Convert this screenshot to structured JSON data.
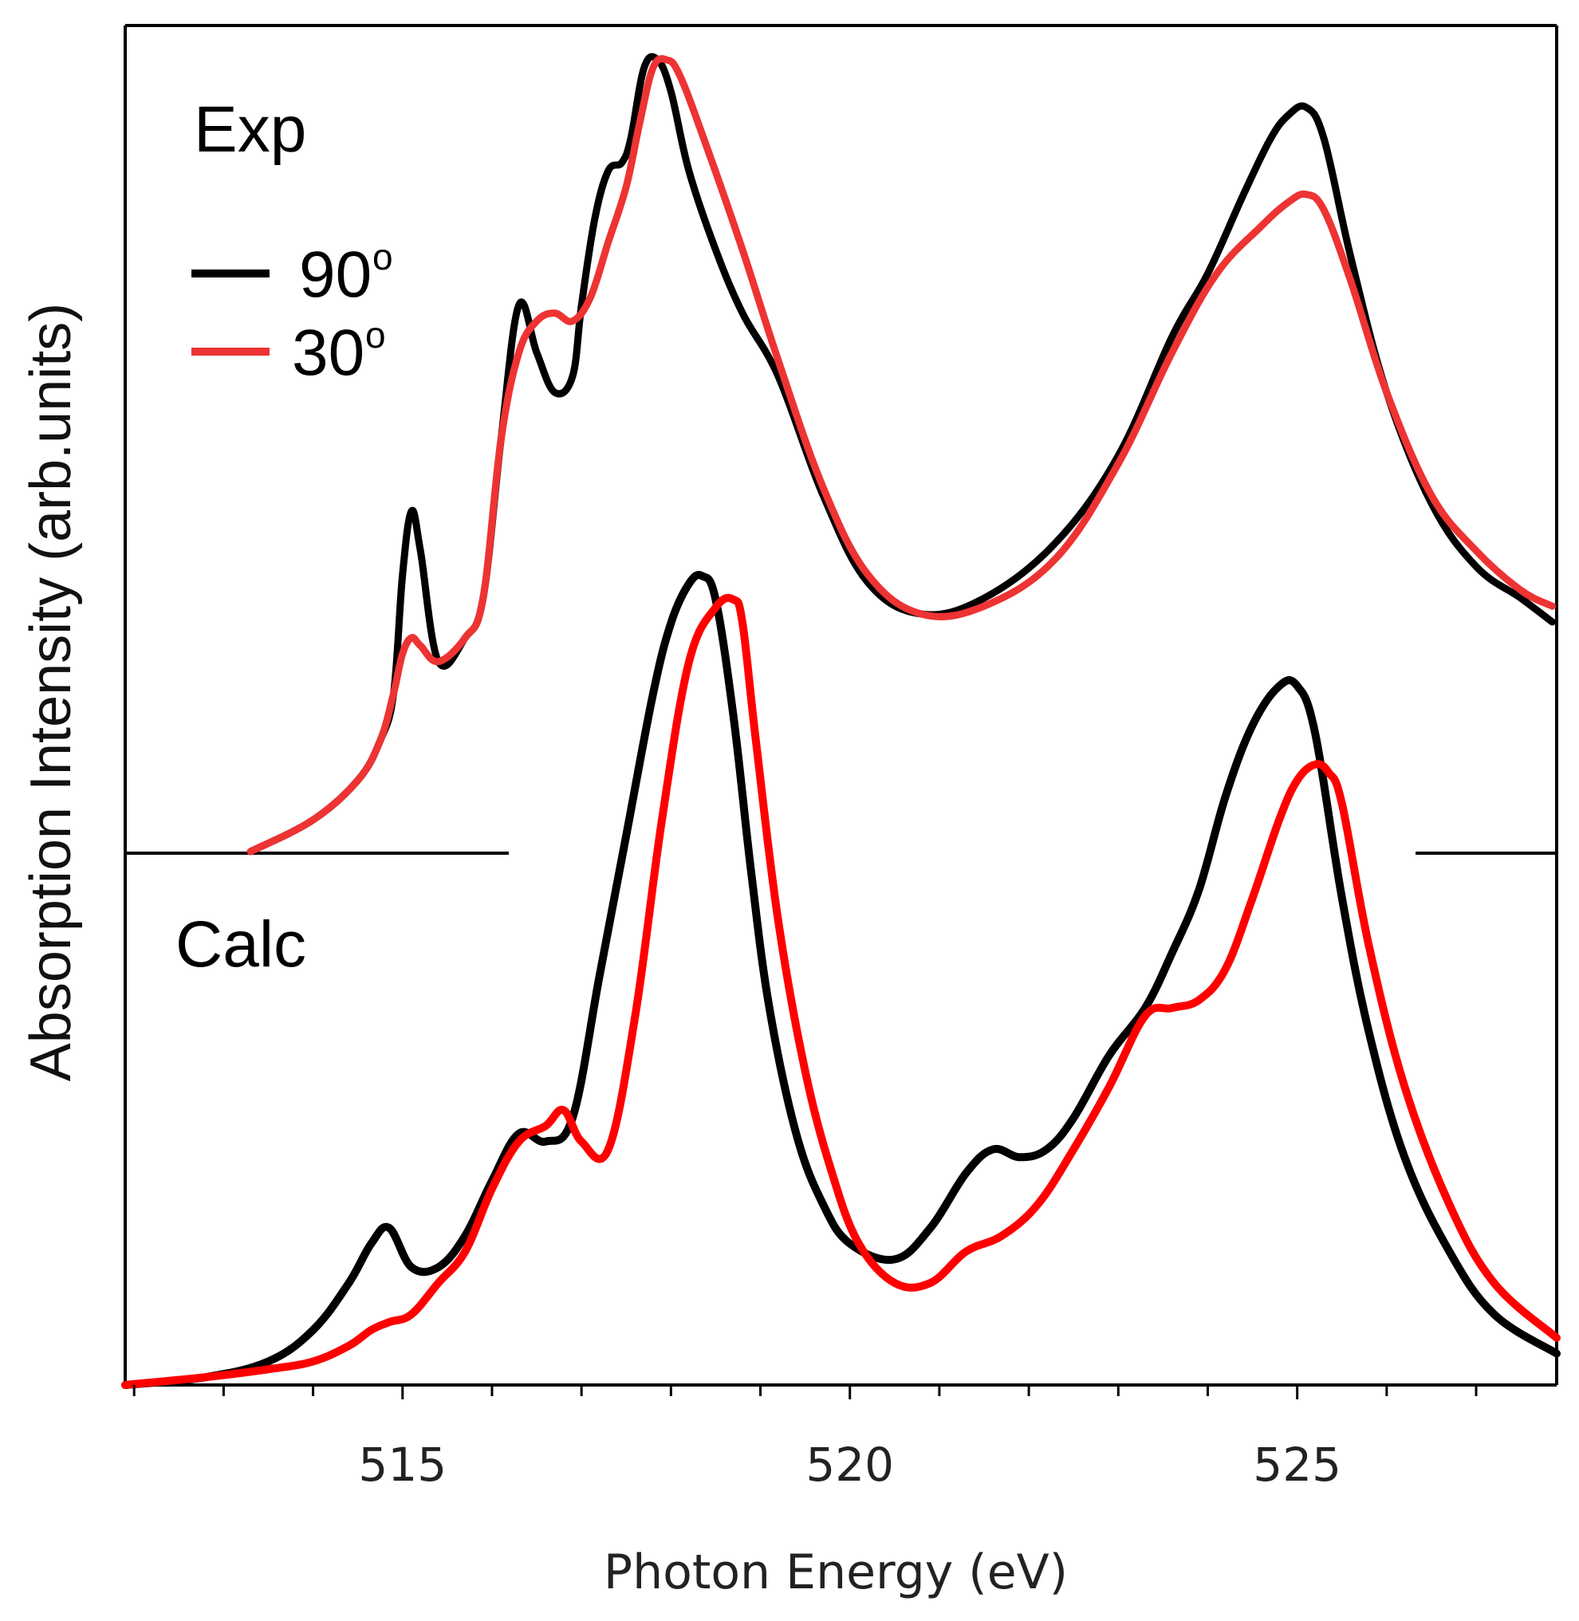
{
  "chart_data": {
    "type": "line",
    "xlabel": "Photon Energy (eV)",
    "ylabel": "Absorption Intensity (arb.units)",
    "xlim": [
      511.9,
      527.9
    ],
    "x_ticks_major": [
      515,
      520,
      525
    ],
    "x_tick_labels": [
      "515",
      "520",
      "525"
    ],
    "x_ticks_minor": [
      512,
      513,
      514,
      516,
      517,
      518,
      519,
      521,
      522,
      523,
      524,
      526,
      527
    ],
    "legend": {
      "position": "upper-left",
      "entries": [
        {
          "label": "90",
          "superscript": "o",
          "color": "#000000"
        },
        {
          "label": "30",
          "superscript": "o",
          "color": "#ee3333"
        }
      ]
    },
    "panels": [
      {
        "name": "Exp",
        "label": "Exp",
        "ylim": [
          0,
          1
        ],
        "series": [
          {
            "name": "90o",
            "color": "#000000",
            "x": [
              513.3,
              514.0,
              514.5,
              514.75,
              514.9,
              515.0,
              515.1,
              515.2,
              515.4,
              515.7,
              515.9,
              516.1,
              516.3,
              516.5,
              516.7,
              516.9,
              517.0,
              517.15,
              517.3,
              517.45,
              517.55,
              517.7,
              517.85,
              518.0,
              518.2,
              518.5,
              518.8,
              519.2,
              519.7,
              520.2,
              520.8,
              521.5,
              522.3,
              523.0,
              523.6,
              524.0,
              524.4,
              524.7,
              524.9,
              525.1,
              525.3,
              525.6,
              526.0,
              526.5,
              527.0,
              527.5,
              527.85
            ],
            "y": [
              0.0,
              0.04,
              0.09,
              0.14,
              0.2,
              0.35,
              0.43,
              0.38,
              0.24,
              0.27,
              0.32,
              0.52,
              0.69,
              0.63,
              0.58,
              0.6,
              0.69,
              0.8,
              0.86,
              0.87,
              0.9,
              0.99,
              1.0,
              0.96,
              0.86,
              0.76,
              0.68,
              0.6,
              0.45,
              0.34,
              0.3,
              0.32,
              0.39,
              0.5,
              0.65,
              0.73,
              0.83,
              0.9,
              0.93,
              0.94,
              0.9,
              0.75,
              0.58,
              0.44,
              0.36,
              0.32,
              0.29
            ]
          },
          {
            "name": "30o",
            "color": "#ee3333",
            "x": [
              513.3,
              514.0,
              514.5,
              514.75,
              514.9,
              515.0,
              515.1,
              515.2,
              515.4,
              515.7,
              515.9,
              516.1,
              516.3,
              516.5,
              516.7,
              516.9,
              517.1,
              517.3,
              517.5,
              517.65,
              517.8,
              517.95,
              518.1,
              518.4,
              518.8,
              519.2,
              519.7,
              520.2,
              520.8,
              521.5,
              522.3,
              523.0,
              523.6,
              524.1,
              524.6,
              524.9,
              525.1,
              525.3,
              525.6,
              526.0,
              526.5,
              527.0,
              527.5,
              527.85
            ],
            "y": [
              0.0,
              0.04,
              0.09,
              0.14,
              0.2,
              0.25,
              0.27,
              0.26,
              0.24,
              0.27,
              0.32,
              0.52,
              0.63,
              0.67,
              0.68,
              0.67,
              0.7,
              0.77,
              0.84,
              0.92,
              0.99,
              1.0,
              0.98,
              0.89,
              0.76,
              0.62,
              0.46,
              0.35,
              0.3,
              0.31,
              0.37,
              0.49,
              0.63,
              0.73,
              0.79,
              0.82,
              0.83,
              0.81,
              0.72,
              0.58,
              0.45,
              0.38,
              0.33,
              0.31
            ]
          }
        ]
      },
      {
        "name": "Calc",
        "label": "Calc",
        "ylim": [
          0,
          1
        ],
        "series": [
          {
            "name": "90o",
            "color": "#000000",
            "x": [
              511.9,
              512.8,
              513.5,
              514.0,
              514.4,
              514.65,
              514.85,
              515.1,
              515.4,
              515.7,
              516.0,
              516.3,
              516.6,
              516.9,
              517.2,
              517.5,
              517.8,
              518.0,
              518.2,
              518.35,
              518.5,
              518.7,
              518.9,
              519.1,
              519.4,
              519.7,
              520.0,
              520.5,
              520.9,
              521.3,
              521.6,
              521.9,
              522.2,
              522.5,
              522.9,
              523.3,
              523.6,
              523.9,
              524.2,
              524.5,
              524.8,
              525.0,
              525.2,
              525.5,
              525.8,
              526.2,
              526.7,
              527.2,
              527.9
            ],
            "y": [
              0.0,
              0.01,
              0.03,
              0.07,
              0.13,
              0.18,
              0.2,
              0.15,
              0.15,
              0.19,
              0.26,
              0.32,
              0.31,
              0.34,
              0.52,
              0.7,
              0.88,
              0.97,
              1.02,
              1.03,
              1.0,
              0.85,
              0.65,
              0.48,
              0.32,
              0.23,
              0.18,
              0.16,
              0.2,
              0.27,
              0.3,
              0.29,
              0.3,
              0.34,
              0.42,
              0.48,
              0.55,
              0.63,
              0.75,
              0.84,
              0.89,
              0.89,
              0.83,
              0.62,
              0.45,
              0.29,
              0.17,
              0.09,
              0.04
            ]
          },
          {
            "name": "30o",
            "color": "#ff0000",
            "x": [
              511.9,
              512.8,
              513.5,
              514.0,
              514.4,
              514.65,
              514.85,
              515.1,
              515.4,
              515.7,
              516.0,
              516.3,
              516.6,
              516.8,
              517.0,
              517.3,
              517.6,
              517.9,
              518.2,
              518.5,
              518.7,
              518.8,
              518.95,
              519.2,
              519.5,
              519.8,
              520.1,
              520.5,
              520.9,
              521.3,
              521.7,
              522.1,
              522.5,
              522.9,
              523.3,
              523.6,
              523.9,
              524.2,
              524.5,
              524.8,
              525.0,
              525.2,
              525.35,
              525.5,
              525.8,
              526.2,
              526.7,
              527.2,
              527.9
            ],
            "y": [
              0.0,
              0.01,
              0.02,
              0.03,
              0.05,
              0.07,
              0.08,
              0.09,
              0.13,
              0.17,
              0.25,
              0.31,
              0.33,
              0.35,
              0.31,
              0.3,
              0.47,
              0.72,
              0.92,
              0.99,
              1.0,
              0.97,
              0.82,
              0.59,
              0.4,
              0.27,
              0.18,
              0.13,
              0.13,
              0.17,
              0.19,
              0.23,
              0.3,
              0.38,
              0.47,
              0.48,
              0.49,
              0.53,
              0.62,
              0.72,
              0.77,
              0.79,
              0.78,
              0.74,
              0.56,
              0.38,
              0.23,
              0.13,
              0.06
            ]
          }
        ]
      }
    ]
  }
}
